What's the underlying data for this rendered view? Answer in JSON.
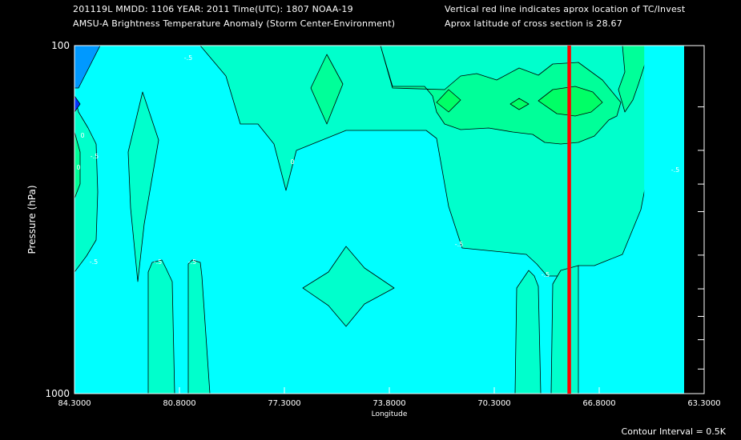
{
  "header": {
    "line1_left": "201119L  MMDD: 1106 YEAR: 2011 Time(UTC): 1807 NOAA-19",
    "line2_left": "AMSU-A Brightness Temperature Anomaly (Storm Center-Environment)",
    "line1_right": "Vertical red line indicates aprox location of TC/Invest",
    "line2_right": "Aprox latitude of cross section is 28.67"
  },
  "footer": {
    "contour_interval": "Contour Interval = 0.5K"
  },
  "colors": {
    "background": "#000000",
    "cyan": "#00ffff",
    "aqua_green": "#00ffcc",
    "spring_green": "#00ff99",
    "green": "#00ff66",
    "bright_green": "#00ff33",
    "blue": "#0099ff",
    "dark_blue": "#0033ff",
    "tc_line": "#ff0000"
  },
  "chart_data": {
    "type": "contour",
    "xlabel": "Longitude",
    "ylabel": "Pressure (hPa)",
    "xlim": [
      84.3,
      63.3
    ],
    "ylim": [
      1000,
      100
    ],
    "y_scale": "log",
    "x_ticks": [
      "84.3000",
      "80.8000",
      "77.3000",
      "73.8000",
      "70.3000",
      "66.8000",
      "63.3000"
    ],
    "y_tick_labels": [
      "100",
      "1000"
    ],
    "y_minor_ticks": [
      150,
      200,
      250,
      300,
      400,
      500,
      600,
      700,
      850
    ],
    "tc_longitude": 67.8,
    "contour_interval_k": 0.5,
    "contour_labels": [
      "-.5",
      "0",
      "0",
      "-.5",
      "-.5",
      "-.5",
      "-.5",
      "0",
      "-.5",
      "-.5",
      "-.5"
    ],
    "data_extent_lon": [
      84.3,
      65.3
    ]
  }
}
